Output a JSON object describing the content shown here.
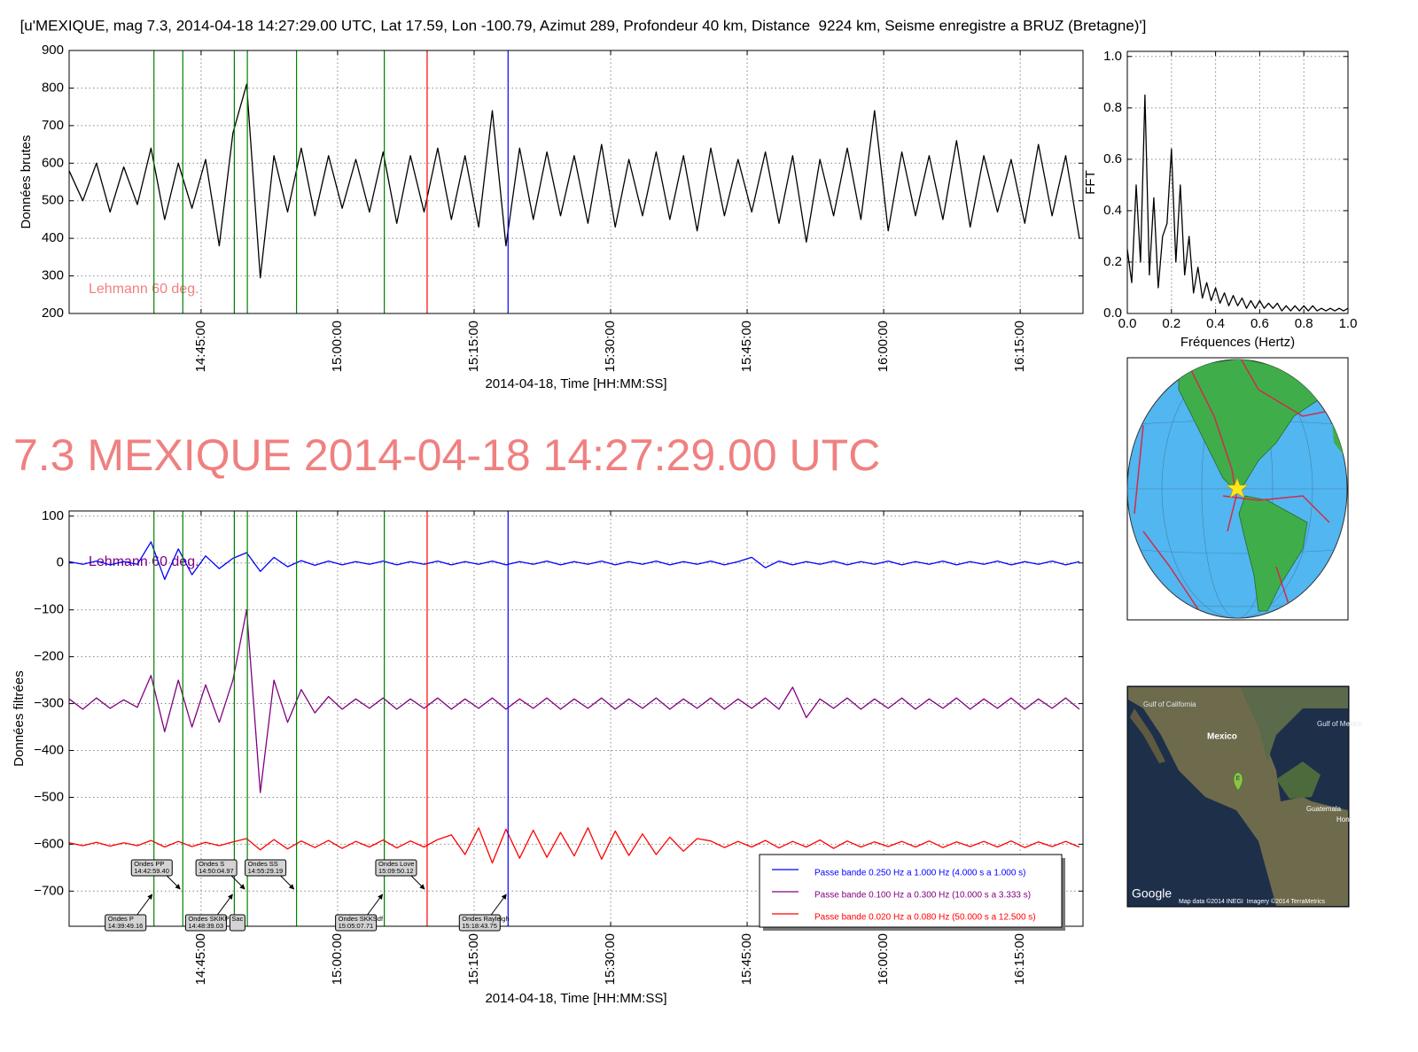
{
  "chart_data": [
    {
      "type": "line",
      "title": "[u'MEXIQUE, mag 7.3, 2014-04-18 14:27:29.00 UTC, Lat 17.59, Lon -100.79, Azimut 289, Profondeur 40 km, Distance  9224 km, Seisme enregistre a BRUZ (Bretagne)']",
      "y_label": "Données brutes",
      "x_label": "2014-04-18, Time [HH:MM:SS]",
      "x": [
        "14:30:30",
        "14:32:00",
        "14:33:30",
        "14:35:00",
        "14:36:30",
        "14:38:00",
        "14:39:30",
        "14:41:00",
        "14:42:30",
        "14:44:00",
        "14:45:30",
        "14:47:00",
        "14:48:30",
        "14:50:00",
        "14:51:30",
        "14:53:00",
        "14:54:30",
        "14:56:00",
        "14:57:30",
        "14:59:00",
        "15:00:30",
        "15:02:00",
        "15:03:30",
        "15:05:00",
        "15:06:30",
        "15:08:00",
        "15:09:30",
        "15:11:00",
        "15:12:30",
        "15:14:00",
        "15:15:30",
        "15:17:00",
        "15:18:30",
        "15:20:00",
        "15:21:30",
        "15:23:00",
        "15:24:30",
        "15:26:00",
        "15:27:30",
        "15:29:00",
        "15:30:30",
        "15:32:00",
        "15:33:30",
        "15:35:00",
        "15:36:30",
        "15:38:00",
        "15:39:30",
        "15:41:00",
        "15:42:30",
        "15:44:00",
        "15:45:30",
        "15:47:00",
        "15:48:30",
        "15:50:00",
        "15:51:30",
        "15:53:00",
        "15:54:30",
        "15:56:00",
        "15:57:30",
        "15:59:00",
        "16:00:30",
        "16:02:00",
        "16:03:30",
        "16:05:00",
        "16:06:30",
        "16:08:00",
        "16:09:30",
        "16:11:00",
        "16:12:30",
        "16:14:00",
        "16:15:30",
        "16:17:00",
        "16:18:30",
        "16:20:00",
        "16:21:30"
      ],
      "series": [
        {
          "color": "#000000",
          "values": [
            580,
            500,
            600,
            470,
            590,
            490,
            640,
            450,
            600,
            480,
            610,
            380,
            680,
            810,
            295,
            620,
            470,
            640,
            460,
            620,
            480,
            610,
            470,
            630,
            440,
            620,
            470,
            640,
            450,
            620,
            430,
            740,
            380,
            640,
            450,
            630,
            460,
            620,
            440,
            650,
            430,
            610,
            460,
            630,
            450,
            620,
            420,
            640,
            460,
            610,
            470,
            630,
            440,
            620,
            390,
            610,
            460,
            640,
            450,
            740,
            420,
            630,
            460,
            620,
            450,
            660,
            430,
            620,
            470,
            610,
            440,
            650,
            460,
            620,
            400
          ]
        }
      ],
      "xlim": [
        "14:30:30",
        "16:21:54"
      ],
      "xticks": [
        "14:45:00",
        "15:00:00",
        "15:15:00",
        "15:30:00",
        "15:45:00",
        "16:00:00",
        "16:15:00"
      ],
      "ylim": [
        200,
        900
      ],
      "yticks": [
        200,
        300,
        400,
        500,
        600,
        700,
        800,
        900
      ],
      "grid": true,
      "markers": [
        {
          "x": "14:39:49.16",
          "color": "#008000"
        },
        {
          "x": "14:42:59.40",
          "color": "#008000"
        },
        {
          "x": "14:48:39.03",
          "color": "#008000"
        },
        {
          "x": "14:50:04.97",
          "color": "#008000"
        },
        {
          "x": "14:55:29.19",
          "color": "#008000"
        },
        {
          "x": "15:05:07.71",
          "color": "#008000"
        },
        {
          "x": "15:09:50.12",
          "color": "#ff0000"
        },
        {
          "x": "15:18:43.75",
          "color": "#0000ff"
        }
      ],
      "annotation": "Lehmann 60 deg.",
      "annotation_color": "#f08080"
    },
    {
      "type": "line",
      "y_label": "FFT",
      "x_label": "Fréquences (Hertz)",
      "x": [
        0,
        0.02,
        0.04,
        0.06,
        0.08,
        0.1,
        0.12,
        0.14,
        0.16,
        0.18,
        0.2,
        0.22,
        0.24,
        0.26,
        0.28,
        0.3,
        0.32,
        0.34,
        0.36,
        0.38,
        0.4,
        0.42,
        0.44,
        0.46,
        0.48,
        0.5,
        0.52,
        0.54,
        0.56,
        0.58,
        0.6,
        0.62,
        0.64,
        0.66,
        0.68,
        0.7,
        0.72,
        0.74,
        0.76,
        0.78,
        0.8,
        0.82,
        0.84,
        0.86,
        0.88,
        0.9,
        0.92,
        0.94,
        0.96,
        0.98,
        1
      ],
      "series": [
        {
          "color": "#000000",
          "values": [
            0.25,
            0.12,
            0.5,
            0.2,
            0.85,
            0.15,
            0.45,
            0.1,
            0.3,
            0.35,
            0.64,
            0.2,
            0.5,
            0.15,
            0.3,
            0.08,
            0.18,
            0.06,
            0.12,
            0.05,
            0.1,
            0.04,
            0.08,
            0.03,
            0.07,
            0.03,
            0.06,
            0.02,
            0.05,
            0.02,
            0.05,
            0.02,
            0.04,
            0.02,
            0.04,
            0.01,
            0.03,
            0.01,
            0.03,
            0.01,
            0.03,
            0.01,
            0.03,
            0.01,
            0.02,
            0.01,
            0.02,
            0.01,
            0.02,
            0.01,
            0.02
          ]
        }
      ],
      "xlim": [
        0,
        1
      ],
      "xticks": [
        {
          "value": 0,
          "label": "0.0"
        },
        {
          "value": 0.2,
          "label": "0.2"
        },
        {
          "value": 0.4,
          "label": "0.4"
        },
        {
          "value": 0.6,
          "label": "0.6"
        },
        {
          "value": 0.8,
          "label": "0.8"
        },
        {
          "value": 1,
          "label": "1.0"
        }
      ],
      "ylim": [
        0,
        1.02
      ],
      "yticks": [
        {
          "value": 0,
          "label": "0.0"
        },
        {
          "value": 0.2,
          "label": "0.2"
        },
        {
          "value": 0.4,
          "label": "0.4"
        },
        {
          "value": 0.6,
          "label": "0.6"
        },
        {
          "value": 0.8,
          "label": "0.8"
        },
        {
          "value": 1,
          "label": "1.0"
        }
      ],
      "grid": true
    },
    {
      "type": "line",
      "title": "7.3 MEXIQUE 2014-04-18 14:27:29.00 UTC",
      "title_color": "#f08080",
      "y_label": "Données filtrées",
      "x_label": "2014-04-18, Time [HH:MM:SS]",
      "x": [
        "14:30:30",
        "14:32:00",
        "14:33:30",
        "14:35:00",
        "14:36:30",
        "14:38:00",
        "14:39:30",
        "14:41:00",
        "14:42:30",
        "14:44:00",
        "14:45:30",
        "14:47:00",
        "14:48:30",
        "14:50:00",
        "14:51:30",
        "14:53:00",
        "14:54:30",
        "14:56:00",
        "14:57:30",
        "14:59:00",
        "15:00:30",
        "15:02:00",
        "15:03:30",
        "15:05:00",
        "15:06:30",
        "15:08:00",
        "15:09:30",
        "15:11:00",
        "15:12:30",
        "15:14:00",
        "15:15:30",
        "15:17:00",
        "15:18:30",
        "15:20:00",
        "15:21:30",
        "15:23:00",
        "15:24:30",
        "15:26:00",
        "15:27:30",
        "15:29:00",
        "15:30:30",
        "15:32:00",
        "15:33:30",
        "15:35:00",
        "15:36:30",
        "15:38:00",
        "15:39:30",
        "15:41:00",
        "15:42:30",
        "15:44:00",
        "15:45:30",
        "15:47:00",
        "15:48:30",
        "15:50:00",
        "15:51:30",
        "15:53:00",
        "15:54:30",
        "15:56:00",
        "15:57:30",
        "15:59:00",
        "16:00:30",
        "16:02:00",
        "16:03:30",
        "16:05:00",
        "16:06:30",
        "16:08:00",
        "16:09:30",
        "16:11:00",
        "16:12:30",
        "16:14:00",
        "16:15:30",
        "16:17:00",
        "16:18:30",
        "16:20:00",
        "16:21:30"
      ],
      "series": [
        {
          "name": "Passe bande 0.250 Hz a 1.000 Hz (4.000 s a 1.000 s)",
          "color": "#0000ff",
          "values": [
            3,
            -3,
            4,
            -4,
            3,
            -3,
            45,
            -35,
            30,
            -25,
            15,
            -12,
            10,
            22,
            -18,
            12,
            -8,
            5,
            -5,
            4,
            -4,
            3,
            -3,
            4,
            -4,
            3,
            -3,
            4,
            -4,
            3,
            -3,
            4,
            -4,
            3,
            -3,
            4,
            -4,
            3,
            -3,
            4,
            -4,
            3,
            -3,
            4,
            -4,
            3,
            -3,
            4,
            -4,
            3,
            12,
            -10,
            4,
            -4,
            3,
            -3,
            4,
            -4,
            3,
            -3,
            4,
            -4,
            3,
            -3,
            4,
            -4,
            3,
            -3,
            4,
            -4,
            3,
            -3,
            4,
            -4,
            3
          ]
        },
        {
          "name": "Passe bande 0.100 Hz a 0.300 Hz (10.000 s a 3.333 s)",
          "color": "#800080",
          "values": [
            -290,
            -312,
            -288,
            -310,
            -292,
            -308,
            -240,
            -360,
            -250,
            -350,
            -260,
            -340,
            -250,
            -100,
            -490,
            -250,
            -340,
            -270,
            -320,
            -285,
            -312,
            -290,
            -310,
            -288,
            -312,
            -290,
            -310,
            -288,
            -312,
            -290,
            -310,
            -288,
            -312,
            -290,
            -310,
            -288,
            -312,
            -290,
            -310,
            -288,
            -312,
            -290,
            -310,
            -288,
            -312,
            -290,
            -310,
            -288,
            -312,
            -290,
            -310,
            -288,
            -312,
            -265,
            -330,
            -290,
            -310,
            -288,
            -312,
            -290,
            -310,
            -288,
            -312,
            -290,
            -310,
            -288,
            -312,
            -290,
            -310,
            -288,
            -312,
            -290,
            -310,
            -288,
            -312
          ]
        },
        {
          "name": "Passe bande 0.020 Hz a 0.080 Hz (50.000 s a 12.500 s)",
          "color": "#ff0000",
          "values": [
            -597,
            -603,
            -596,
            -604,
            -597,
            -603,
            -592,
            -606,
            -594,
            -605,
            -596,
            -603,
            -595,
            -588,
            -612,
            -590,
            -610,
            -593,
            -607,
            -592,
            -609,
            -594,
            -606,
            -591,
            -608,
            -593,
            -606,
            -590,
            -580,
            -622,
            -565,
            -640,
            -568,
            -630,
            -570,
            -628,
            -575,
            -625,
            -565,
            -632,
            -572,
            -624,
            -578,
            -622,
            -585,
            -615,
            -588,
            -593,
            -607,
            -594,
            -606,
            -592,
            -608,
            -594,
            -606,
            -591,
            -609,
            -593,
            -606,
            -595,
            -605,
            -594,
            -606,
            -593,
            -607,
            -595,
            -605,
            -594,
            -606,
            -593,
            -607,
            -595,
            -605,
            -594,
            -606
          ]
        }
      ],
      "xlim": [
        "14:30:30",
        "16:21:54"
      ],
      "xticks": [
        "14:45:00",
        "15:00:00",
        "15:15:00",
        "15:30:00",
        "15:45:00",
        "16:00:00",
        "16:15:00"
      ],
      "ylim": [
        -775,
        111
      ],
      "yticks": [
        {
          "value": -700,
          "label": "−700"
        },
        {
          "value": -600,
          "label": "−600"
        },
        {
          "value": -500,
          "label": "−500"
        },
        {
          "value": -400,
          "label": "−400"
        },
        {
          "value": -300,
          "label": "−300"
        },
        {
          "value": -200,
          "label": "−200"
        },
        {
          "value": -100,
          "label": "−100"
        },
        0,
        100
      ],
      "grid": true,
      "legend": "lower right",
      "markers": [
        {
          "name": "Ondes P",
          "x": "14:39:49.16",
          "color": "#008000"
        },
        {
          "name": "Ondes PP",
          "x": "14:42:59.40",
          "color": "#008000"
        },
        {
          "name": "Ondes SKIKP",
          "x": "14:48:39.03",
          "color": "#008000"
        },
        {
          "name": "Ondes S",
          "x": "14:50:04.97",
          "color": "#008000"
        },
        {
          "name": "Ondes SS",
          "x": "14:55:29.19",
          "color": "#008000"
        },
        {
          "name": "Ondes SKKSdf",
          "x": "15:05:07.71",
          "color": "#008000"
        },
        {
          "name": "Ondes Love",
          "x": "15:09:50.12",
          "color": "#ff0000"
        },
        {
          "name": "Ondes Rayleigh",
          "x": "15:18:43.75",
          "color": "#0000ff"
        }
      ],
      "extra_labels": [
        "Sac"
      ],
      "annotation": "Lehmann 60 deg.",
      "annotation_color": "#800080"
    }
  ],
  "satellite_map": {
    "labels": [
      "Gulf of California",
      "Mexico",
      "Gulf of Mexico",
      "Guatemala",
      "Hon"
    ],
    "pin": "E",
    "logo": "Google",
    "attribution": "Map data ©2014 INEGI  Imagery ©2014 TerraMetrics"
  }
}
